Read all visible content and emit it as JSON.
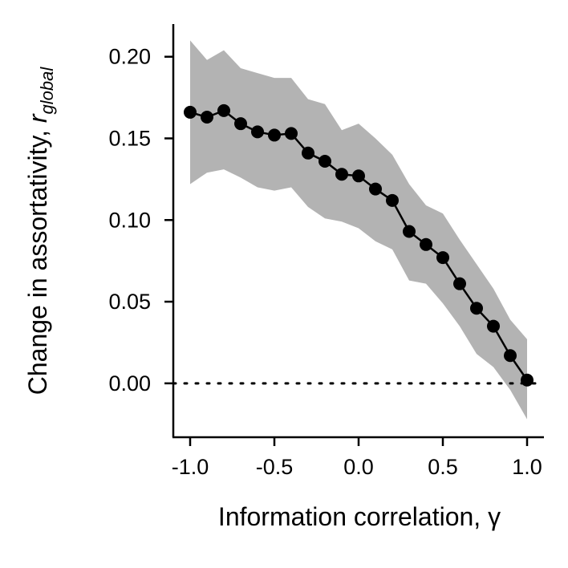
{
  "chart_data": {
    "type": "line",
    "xlabel": "Information correlation, γ",
    "ylabel": {
      "prefix": "Change in assortativity, ",
      "variable": "r",
      "subscript": "global"
    },
    "xlim": [
      -1.1,
      1.1
    ],
    "ylim": [
      -0.033,
      0.22
    ],
    "x_ticks": [
      -1.0,
      -0.5,
      0.0,
      0.5,
      1.0
    ],
    "x_tick_labels": [
      "-1.0",
      "-0.5",
      "0.0",
      "0.5",
      "1.0"
    ],
    "y_ticks": [
      0.0,
      0.05,
      0.1,
      0.15,
      0.2
    ],
    "y_tick_labels": [
      "0.00",
      "0.05",
      "0.10",
      "0.15",
      "0.20"
    ],
    "reference_line": {
      "y": 0.0,
      "style": "dotted",
      "color": "#000000"
    },
    "series": [
      {
        "x": [
          -1.0,
          -0.9,
          -0.8,
          -0.7,
          -0.6,
          -0.5,
          -0.4,
          -0.3,
          -0.2,
          -0.1,
          0.0,
          0.1,
          0.2,
          0.3,
          0.4,
          0.5,
          0.6,
          0.7,
          0.8,
          0.9,
          1.0
        ],
        "y": [
          0.166,
          0.163,
          0.167,
          0.159,
          0.154,
          0.152,
          0.153,
          0.141,
          0.136,
          0.128,
          0.127,
          0.119,
          0.112,
          0.093,
          0.085,
          0.077,
          0.061,
          0.046,
          0.035,
          0.017,
          0.002
        ],
        "lower": [
          0.122,
          0.129,
          0.131,
          0.126,
          0.12,
          0.118,
          0.12,
          0.108,
          0.101,
          0.099,
          0.095,
          0.087,
          0.082,
          0.063,
          0.061,
          0.049,
          0.035,
          0.018,
          0.01,
          -0.004,
          -0.022
        ],
        "upper": [
          0.21,
          0.198,
          0.204,
          0.193,
          0.19,
          0.187,
          0.187,
          0.174,
          0.171,
          0.155,
          0.159,
          0.15,
          0.14,
          0.122,
          0.109,
          0.104,
          0.088,
          0.073,
          0.058,
          0.039,
          0.027
        ],
        "line_color": "#000000",
        "band_color": "#b3b3b3",
        "marker": "circle"
      }
    ],
    "grid": false,
    "legend": "none"
  }
}
